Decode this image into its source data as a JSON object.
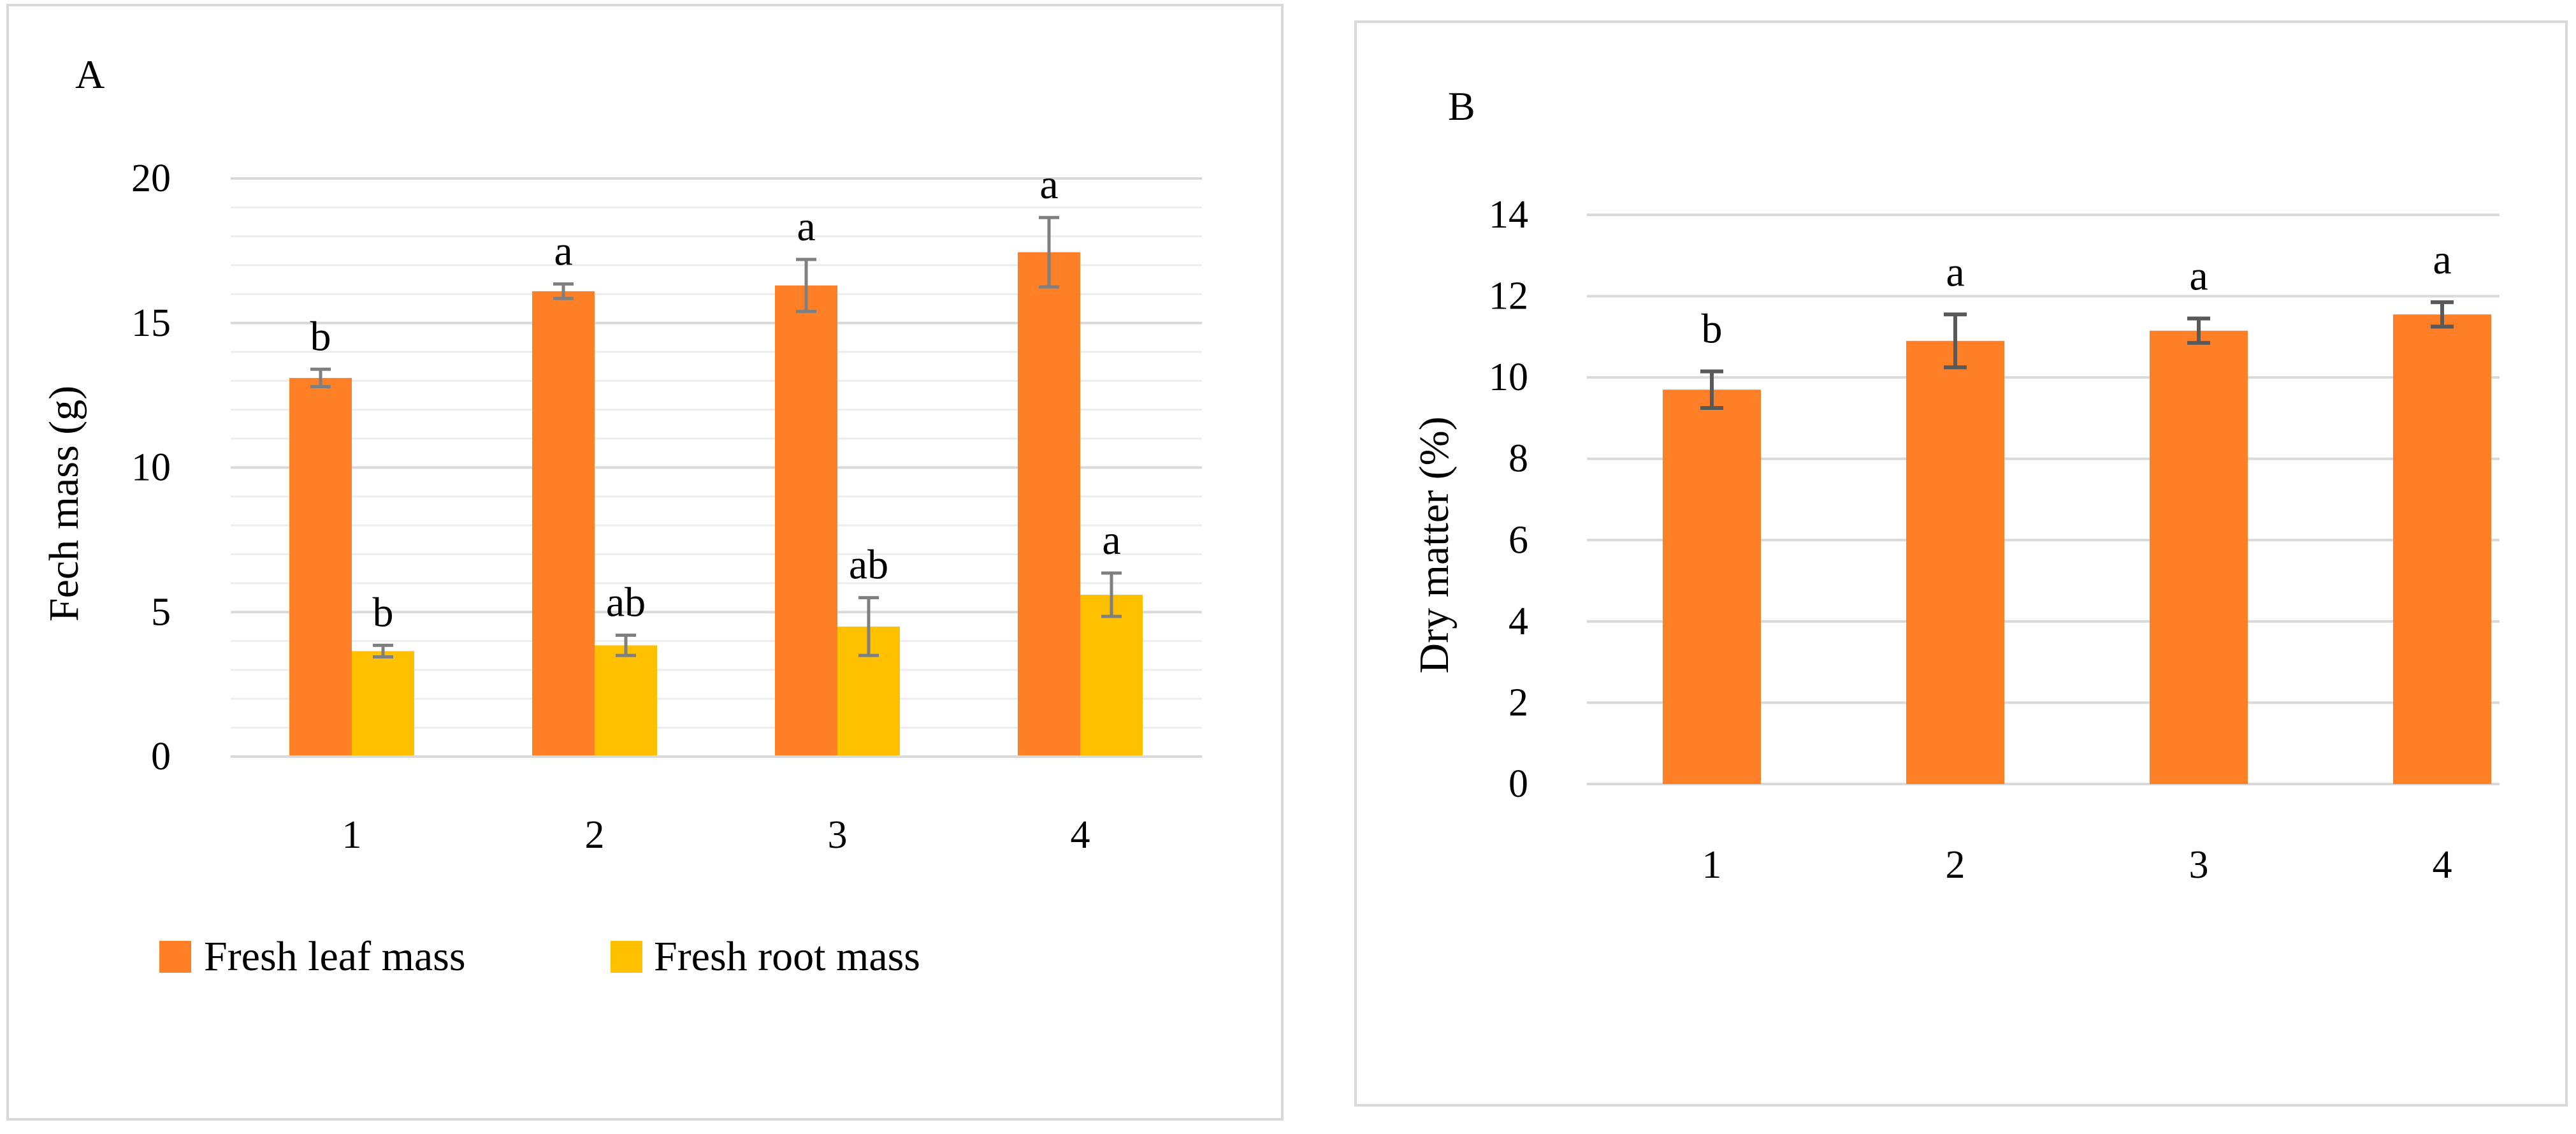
{
  "chart_data": [
    {
      "panel": "A",
      "type": "bar",
      "ylabel": "Fech mass (g)",
      "xlabel": "",
      "ylim": [
        0,
        20
      ],
      "major_ticks": [
        0,
        5,
        10,
        15,
        20
      ],
      "minor_grid_step": 1,
      "categories": [
        "1",
        "2",
        "3",
        "4"
      ],
      "series": [
        {
          "name": "Fresh leaf mass",
          "color": "#FF7F27",
          "values": [
            13.1,
            16.1,
            16.3,
            17.45
          ],
          "errors": [
            0.3,
            0.25,
            0.9,
            1.2
          ],
          "letters": [
            "b",
            "a",
            "a",
            "a"
          ]
        },
        {
          "name": "Fresh root mass",
          "color": "#FFC000",
          "values": [
            3.65,
            3.85,
            4.5,
            5.6
          ],
          "errors": [
            0.2,
            0.35,
            1.0,
            0.75
          ],
          "letters": [
            "b",
            "ab",
            "ab",
            "a"
          ]
        }
      ],
      "legend_position": "bottom"
    },
    {
      "panel": "B",
      "type": "bar",
      "ylabel": "Dry matter (%)",
      "xlabel": "",
      "ylim": [
        0,
        14
      ],
      "major_ticks": [
        0,
        2,
        4,
        6,
        8,
        10,
        12,
        14
      ],
      "categories": [
        "1",
        "2",
        "3",
        "4"
      ],
      "series": [
        {
          "name": "Dry matter",
          "color": "#FF7F27",
          "values": [
            9.7,
            10.9,
            11.15,
            11.55
          ],
          "errors": [
            0.45,
            0.65,
            0.3,
            0.3
          ],
          "letters": [
            "b",
            "a",
            "a",
            "a"
          ]
        }
      ]
    }
  ]
}
